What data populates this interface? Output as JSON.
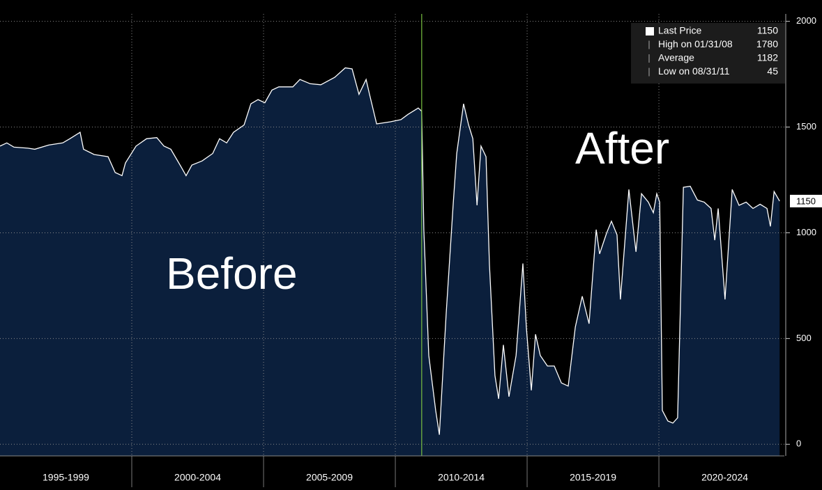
{
  "chart_data": {
    "type": "area",
    "annotations": [
      "Before",
      "After"
    ],
    "legend_items": [
      {
        "label": "Last Price",
        "value": 1150
      },
      {
        "label": "High on 01/31/08",
        "value": 1780
      },
      {
        "label": "Average",
        "value": 1182
      },
      {
        "label": "Low on 08/31/11",
        "value": 45
      }
    ],
    "series": [
      {
        "name": "Last Price",
        "color": "#ffffff",
        "fill": "#0b1f3c",
        "x": [
          1995.0,
          1995.26,
          1995.53,
          1996.06,
          1996.32,
          1996.85,
          1997.38,
          1997.65,
          1998.04,
          1998.17,
          1998.57,
          1999.1,
          1999.37,
          1999.63,
          1999.76,
          2000.16,
          2000.56,
          2000.95,
          2001.22,
          2001.48,
          2001.88,
          2002.06,
          2002.28,
          2002.67,
          2003.07,
          2003.33,
          2003.6,
          2003.86,
          2004.26,
          2004.52,
          2004.79,
          2005.05,
          2005.32,
          2005.58,
          2006.11,
          2006.38,
          2006.77,
          2007.17,
          2007.7,
          2008.1,
          2008.36,
          2008.62,
          2008.89,
          2009.02,
          2009.29,
          2009.81,
          2010.21,
          2010.48,
          2010.87,
          2011.0,
          2011.08,
          2011.27,
          2011.53,
          2011.67,
          2011.93,
          2012.2,
          2012.33,
          2012.59,
          2012.78,
          2012.94,
          2013.1,
          2013.25,
          2013.44,
          2013.57,
          2013.78,
          2013.92,
          2014.1,
          2014.31,
          2014.58,
          2014.84,
          2014.97,
          2015.16,
          2015.32,
          2015.5,
          2015.77,
          2016.03,
          2016.3,
          2016.56,
          2016.83,
          2017.09,
          2017.35,
          2017.62,
          2017.75,
          2018.02,
          2018.2,
          2018.41,
          2018.54,
          2018.86,
          2019.13,
          2019.34,
          2019.6,
          2019.79,
          2019.92,
          2020.03,
          2020.13,
          2020.34,
          2020.53,
          2020.71,
          2020.93,
          2021.19,
          2021.46,
          2021.72,
          2021.98,
          2022.12,
          2022.25,
          2022.51,
          2022.78,
          2023.04,
          2023.31,
          2023.57,
          2023.84,
          2024.1,
          2024.23,
          2024.37,
          2024.58
        ],
        "values": [
          1410,
          1425,
          1405,
          1400,
          1395,
          1415,
          1425,
          1445,
          1475,
          1395,
          1370,
          1360,
          1285,
          1270,
          1330,
          1410,
          1445,
          1450,
          1410,
          1395,
          1310,
          1270,
          1320,
          1340,
          1375,
          1445,
          1425,
          1475,
          1510,
          1610,
          1630,
          1615,
          1675,
          1690,
          1690,
          1725,
          1705,
          1700,
          1735,
          1780,
          1775,
          1655,
          1725,
          1655,
          1515,
          1525,
          1535,
          1560,
          1590,
          1575,
          1015,
          420,
          160,
          45,
          620,
          1145,
          1375,
          1610,
          1510,
          1445,
          1130,
          1410,
          1360,
          850,
          325,
          215,
          470,
          225,
          420,
          855,
          555,
          255,
          520,
          420,
          370,
          370,
          290,
          275,
          555,
          700,
          570,
          1015,
          900,
          1000,
          1055,
          990,
          685,
          1205,
          910,
          1185,
          1145,
          1095,
          1185,
          1145,
          160,
          110,
          100,
          125,
          1215,
          1220,
          1155,
          1145,
          1115,
          965,
          1115,
          685,
          1205,
          1130,
          1145,
          1115,
          1135,
          1115,
          1030,
          1195,
          1150
        ]
      }
    ],
    "vline": {
      "x": 2011.0,
      "color": "#7ac142"
    },
    "xlim": [
      1995,
      2024.76
    ],
    "xticks": [
      {
        "value": 1997.5,
        "label": "1995-1999"
      },
      {
        "value": 2002.5,
        "label": "2000-2004"
      },
      {
        "value": 2007.5,
        "label": "2005-2009"
      },
      {
        "value": 2012.5,
        "label": "2010-2014"
      },
      {
        "value": 2017.5,
        "label": "2015-2019"
      },
      {
        "value": 2022.5,
        "label": "2020-2024"
      }
    ],
    "xgrid": [
      2000,
      2005,
      2010,
      2015,
      2020
    ],
    "ylim": [
      -55,
      2035
    ],
    "yticks": [
      0,
      500,
      1000,
      1500,
      2000
    ],
    "grid": true
  }
}
